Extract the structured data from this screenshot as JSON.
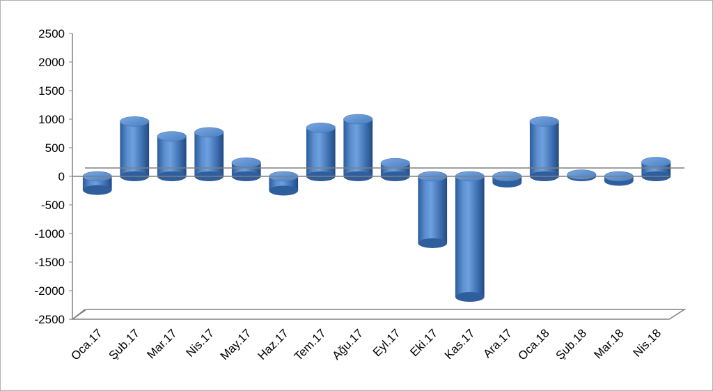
{
  "chart_data": {
    "type": "bar",
    "style": "3d-cylinder",
    "categories": [
      "Oca.17",
      "Şub.17",
      "Mar.17",
      "Nis.17",
      "May.17",
      "Haz.17",
      "Tem.17",
      "Ağu.17",
      "Eyl.17",
      "Eki.17",
      "Kas.17",
      "Ara.17",
      "Oca.18",
      "Şub.18",
      "Mar.18",
      "Nis.18"
    ],
    "series": [
      {
        "values": [
          -240,
          960,
          700,
          770,
          240,
          -250,
          850,
          1000,
          230,
          -1170,
          -2110,
          -110,
          960,
          30,
          -80,
          250
        ]
      }
    ],
    "ylim": [
      -2500,
      2500
    ],
    "yticks": [
      2500,
      2000,
      1500,
      1000,
      500,
      0,
      -500,
      -1000,
      -1500,
      -2000,
      -2500
    ],
    "grid": false,
    "legend": "none",
    "colors": {
      "bar": "#4f81bd",
      "bar_dark": "#2a5590",
      "bar_top": "#6f9fdc",
      "axis": "#808080"
    }
  }
}
